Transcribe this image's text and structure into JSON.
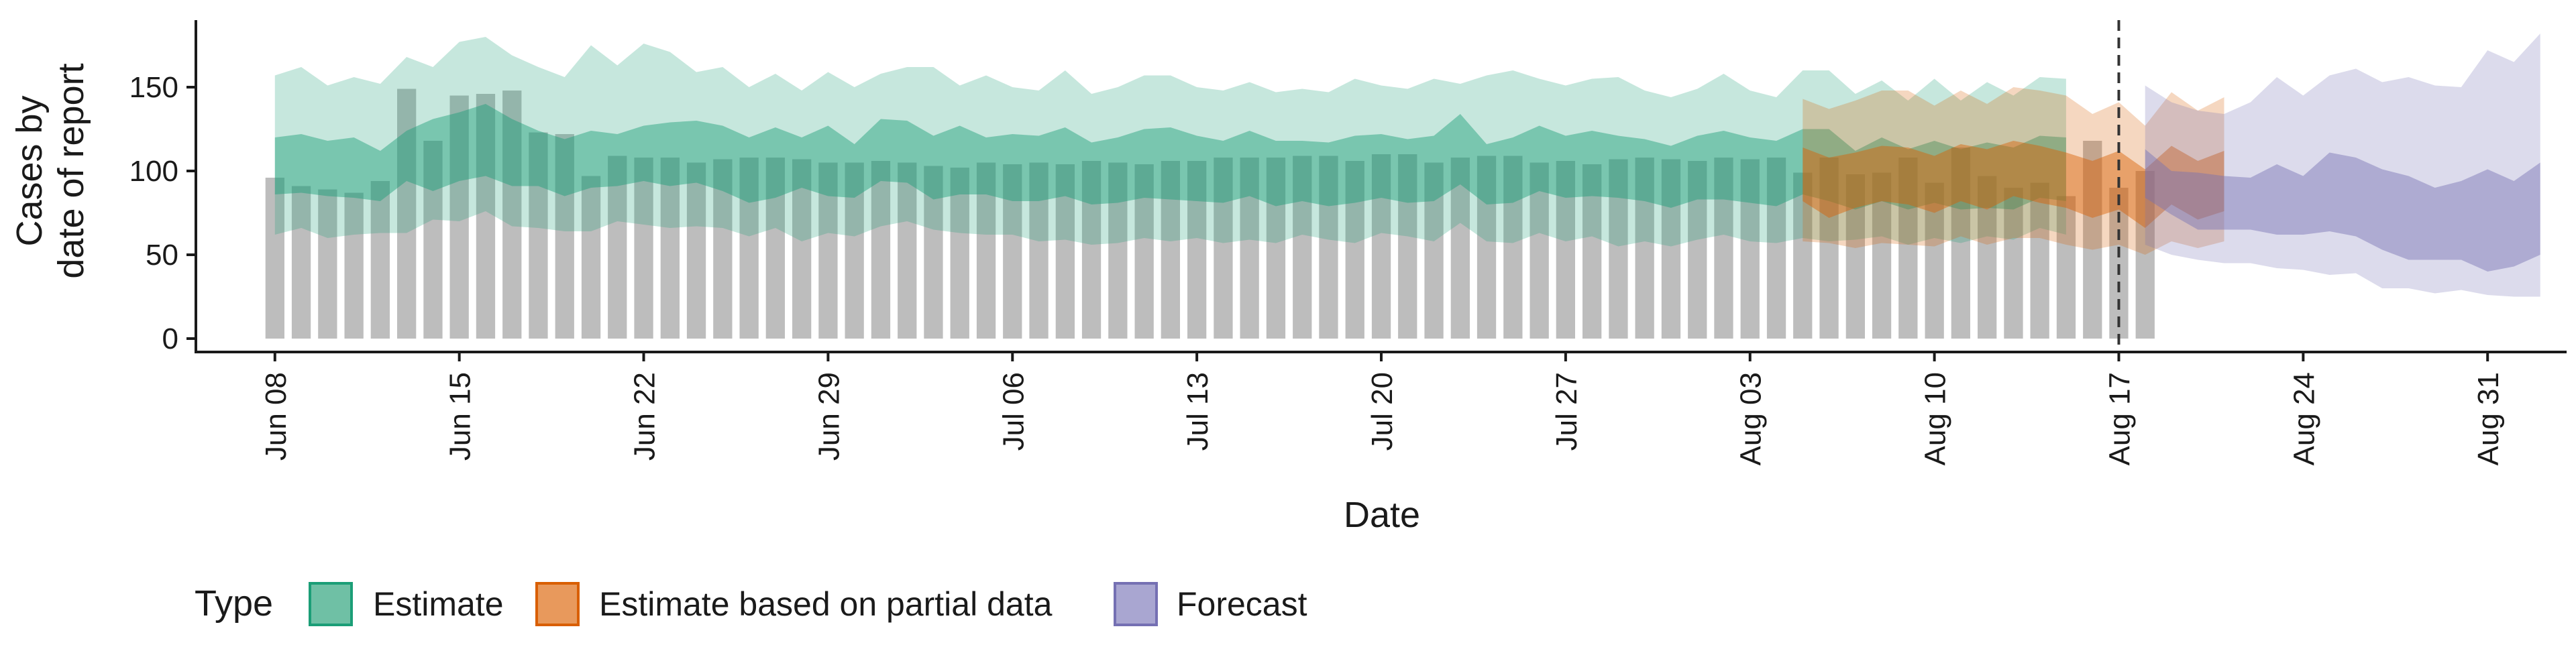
{
  "chart_data": {
    "type": "bar",
    "title": "",
    "xlabel": "Date",
    "ylabel": [
      "Cases by",
      "date of report"
    ],
    "ylim": [
      -8,
      190
    ],
    "yticks": [
      0,
      50,
      100,
      150
    ],
    "grid": false,
    "legend_position": "bottom",
    "x_domain": [
      "2020-06-05",
      "2020-09-03"
    ],
    "xticks": [
      {
        "date": "2020-06-08",
        "label": "Jun 08"
      },
      {
        "date": "2020-06-15",
        "label": "Jun 15"
      },
      {
        "date": "2020-06-22",
        "label": "Jun 22"
      },
      {
        "date": "2020-06-29",
        "label": "Jun 29"
      },
      {
        "date": "2020-07-06",
        "label": "Jul 06"
      },
      {
        "date": "2020-07-13",
        "label": "Jul 13"
      },
      {
        "date": "2020-07-20",
        "label": "Jul 20"
      },
      {
        "date": "2020-07-27",
        "label": "Jul 27"
      },
      {
        "date": "2020-08-03",
        "label": "Aug 03"
      },
      {
        "date": "2020-08-10",
        "label": "Aug 10"
      },
      {
        "date": "2020-08-17",
        "label": "Aug 17"
      },
      {
        "date": "2020-08-24",
        "label": "Aug 24"
      },
      {
        "date": "2020-08-31",
        "label": "Aug 31"
      }
    ],
    "forecast_date": "2020-08-17",
    "observed_cases": {
      "start_date": "2020-06-08",
      "values": [
        96,
        91,
        89,
        87,
        94,
        149,
        118,
        145,
        146,
        148,
        123,
        122,
        97,
        109,
        108,
        108,
        105,
        107,
        108,
        108,
        107,
        105,
        105,
        106,
        105,
        103,
        102,
        105,
        104,
        105,
        104,
        106,
        105,
        104,
        106,
        106,
        108,
        108,
        108,
        109,
        109,
        106,
        110,
        110,
        105,
        108,
        109,
        109,
        105,
        106,
        104,
        107,
        108,
        107,
        106,
        108,
        107,
        108,
        99,
        108,
        98,
        99,
        108,
        93,
        114,
        97,
        90,
        93,
        85,
        118,
        90,
        100
      ]
    },
    "series": [
      {
        "name": "Estimate",
        "color": "#1b9e77",
        "start_date": "2020-06-08",
        "ci90_upper": [
          157,
          162,
          151,
          156,
          152,
          168,
          162,
          177,
          180,
          169,
          162,
          156,
          175,
          163,
          176,
          171,
          159,
          162,
          150,
          158,
          148,
          159,
          150,
          158,
          162,
          162,
          151,
          157,
          150,
          148,
          160,
          146,
          150,
          157,
          157,
          150,
          148,
          153,
          147,
          149,
          147,
          155,
          151,
          149,
          155,
          152,
          157,
          160,
          155,
          151,
          155,
          156,
          148,
          144,
          149,
          158,
          148,
          144,
          160,
          160,
          146,
          154,
          142,
          155,
          142,
          153,
          145,
          156,
          155
        ],
        "ci50_upper": [
          120,
          122,
          118,
          120,
          112,
          124,
          131,
          135,
          140,
          131,
          124,
          119,
          124,
          122,
          127,
          129,
          130,
          127,
          120,
          126,
          120,
          127,
          116,
          131,
          130,
          121,
          127,
          120,
          122,
          121,
          126,
          117,
          120,
          125,
          126,
          121,
          118,
          124,
          118,
          118,
          117,
          121,
          122,
          119,
          121,
          134,
          116,
          120,
          127,
          121,
          124,
          121,
          119,
          115,
          121,
          124,
          120,
          118,
          125,
          125,
          112,
          120,
          113,
          118,
          113,
          117,
          114,
          121,
          120
        ],
        "ci50_lower": [
          86,
          87,
          85,
          84,
          82,
          94,
          88,
          94,
          97,
          91,
          91,
          85,
          90,
          91,
          94,
          91,
          93,
          88,
          81,
          84,
          90,
          85,
          84,
          94,
          93,
          83,
          86,
          86,
          82,
          82,
          85,
          80,
          81,
          84,
          83,
          82,
          81,
          85,
          79,
          82,
          79,
          81,
          84,
          81,
          82,
          92,
          80,
          81,
          88,
          84,
          85,
          84,
          82,
          78,
          83,
          83,
          81,
          79,
          86,
          82,
          77,
          82,
          77,
          81,
          77,
          78,
          77,
          84,
          82
        ],
        "ci90_lower": [
          62,
          66,
          60,
          62,
          63,
          63,
          71,
          70,
          76,
          67,
          66,
          64,
          64,
          70,
          68,
          66,
          67,
          66,
          61,
          66,
          58,
          63,
          61,
          67,
          70,
          65,
          63,
          62,
          62,
          58,
          59,
          56,
          57,
          60,
          58,
          60,
          57,
          59,
          57,
          62,
          59,
          57,
          63,
          61,
          58,
          69,
          58,
          57,
          63,
          58,
          61,
          55,
          58,
          55,
          59,
          62,
          58,
          57,
          60,
          58,
          59,
          61,
          56,
          60,
          57,
          61,
          59,
          66,
          62
        ]
      },
      {
        "name": "Estimate based on partial data",
        "color": "#d95f02",
        "start_date": "2020-08-05",
        "ci90_upper": [
          143,
          137,
          142,
          148,
          148,
          139,
          148,
          140,
          150,
          148,
          145,
          134,
          141,
          127,
          147,
          136,
          144
        ],
        "ci50_upper": [
          114,
          108,
          111,
          115,
          114,
          109,
          116,
          113,
          118,
          115,
          111,
          106,
          112,
          101,
          115,
          106,
          112
        ],
        "ci50_lower": [
          82,
          72,
          78,
          82,
          80,
          75,
          82,
          77,
          85,
          81,
          78,
          72,
          77,
          66,
          80,
          71,
          76
        ],
        "ci90_lower": [
          58,
          57,
          54,
          57,
          56,
          55,
          61,
          56,
          60,
          60,
          56,
          53,
          56,
          50,
          58,
          54,
          58
        ]
      },
      {
        "name": "Forecast",
        "color": "#7570b3",
        "start_date": "2020-08-18",
        "ci90_upper": [
          151,
          141,
          136,
          134,
          141,
          156,
          145,
          157,
          161,
          153,
          156,
          151,
          150,
          172,
          165,
          182
        ],
        "ci50_upper": [
          113,
          100,
          99,
          97,
          96,
          104,
          97,
          111,
          108,
          101,
          97,
          90,
          94,
          101,
          94,
          105
        ],
        "ci50_lower": [
          84,
          74,
          65,
          65,
          65,
          62,
          62,
          64,
          61,
          53,
          47,
          47,
          47,
          40,
          43,
          50
        ],
        "ci90_lower": [
          56,
          50,
          47,
          45,
          45,
          42,
          41,
          38,
          39,
          30,
          30,
          27,
          29,
          26,
          25,
          25
        ]
      }
    ]
  },
  "legend": {
    "title": "Type",
    "items": [
      {
        "label": "Estimate",
        "fill": "#6fc0a5",
        "stroke": "#1b9e77"
      },
      {
        "label": "Estimate based on partial data",
        "fill": "#e8995c",
        "stroke": "#d95f02"
      },
      {
        "label": "Forecast",
        "fill": "#a9a6d1",
        "stroke": "#7570b3"
      }
    ]
  },
  "colors": {
    "bars": "#bdbdbd",
    "axis": "#1a1a1a",
    "forecast_line": "#333333"
  }
}
